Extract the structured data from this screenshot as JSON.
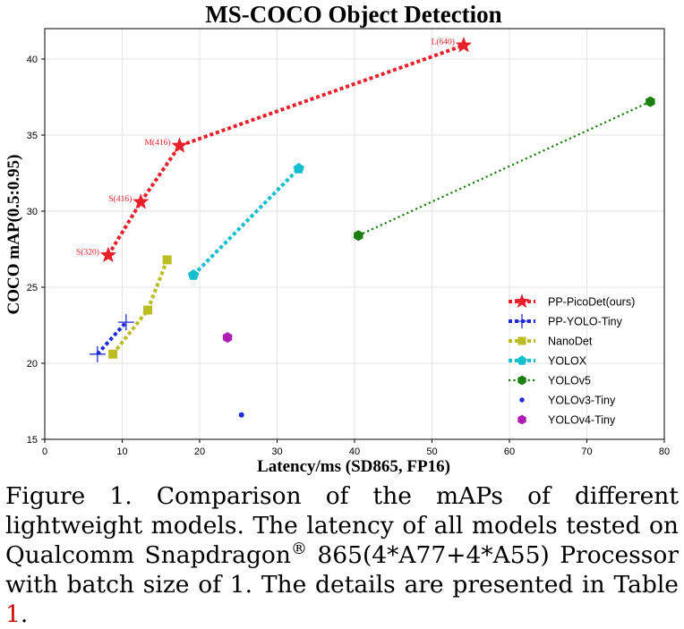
{
  "chart_data": {
    "type": "scatter",
    "title": "MS-COCO Object Detection",
    "xlabel": "Latency/ms (SD865, FP16)",
    "ylabel": "COCO mAP(0.5:0.95)",
    "xlim": [
      0,
      80
    ],
    "ylim": [
      15,
      42
    ],
    "xticks": [
      0,
      10,
      20,
      30,
      40,
      50,
      60,
      70,
      80
    ],
    "yticks": [
      15,
      20,
      25,
      30,
      35,
      40
    ],
    "grid": true,
    "legend_position": "lower-right",
    "series": [
      {
        "name": "PP-PicoDet(ours)",
        "marker": "star",
        "line": "dotted-thick",
        "color": "#e8202a",
        "points": [
          {
            "x": 8.2,
            "y": 27.1,
            "label": "S(320)"
          },
          {
            "x": 12.4,
            "y": 30.6,
            "label": "S(416)"
          },
          {
            "x": 17.4,
            "y": 34.3,
            "label": "M(416)"
          },
          {
            "x": 54.1,
            "y": 40.9,
            "label": "L(640)"
          }
        ]
      },
      {
        "name": "PP-YOLO-Tiny",
        "marker": "plus",
        "line": "dotted-thick",
        "color": "#1f2bd6",
        "points": [
          {
            "x": 6.8,
            "y": 20.6
          },
          {
            "x": 10.5,
            "y": 22.7
          }
        ]
      },
      {
        "name": "NanoDet",
        "marker": "square",
        "line": "dotted-thick",
        "color": "#bcbd22",
        "points": [
          {
            "x": 8.8,
            "y": 20.6
          },
          {
            "x": 13.3,
            "y": 23.5
          },
          {
            "x": 15.8,
            "y": 26.8
          }
        ]
      },
      {
        "name": "YOLOX",
        "marker": "pentagon",
        "line": "dotted-thick",
        "color": "#17becf",
        "points": [
          {
            "x": 19.2,
            "y": 25.8
          },
          {
            "x": 32.8,
            "y": 32.8
          }
        ]
      },
      {
        "name": "YOLOv5",
        "marker": "hexagon",
        "line": "dotted-thin",
        "color": "#1a7f0e",
        "points": [
          {
            "x": 40.5,
            "y": 28.4
          },
          {
            "x": 78.2,
            "y": 37.2
          }
        ]
      },
      {
        "name": "YOLOv3-Tiny",
        "marker": "dot",
        "line": "none",
        "color": "#1f2bd6",
        "points": [
          {
            "x": 25.4,
            "y": 16.6
          }
        ]
      },
      {
        "name": "YOLOv4-Tiny",
        "marker": "hexagon",
        "line": "none",
        "color": "#b01eb5",
        "points": [
          {
            "x": 23.6,
            "y": 21.7
          }
        ]
      }
    ]
  },
  "caption": {
    "prefix": "Figure 1. Comparison of the mAPs of different lightweight models. The latency of all models tested on Qualcomm Snapdragon",
    "registered_mark": "®",
    "middle": " 865(4*A77+4*A55) Processor with batch size of 1.  The details are presented in Table ",
    "table_ref": "1",
    "suffix": "."
  }
}
